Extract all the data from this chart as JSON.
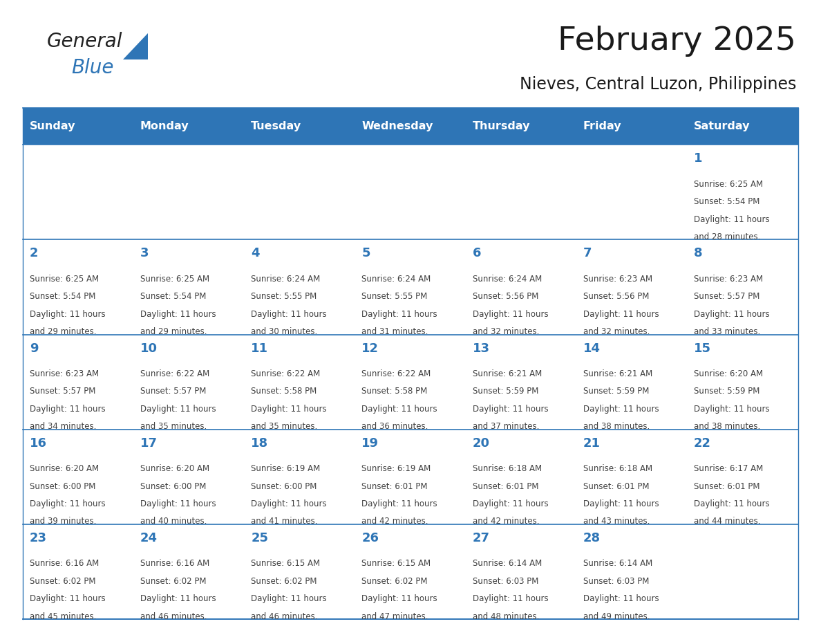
{
  "title": "February 2025",
  "subtitle": "Nieves, Central Luzon, Philippines",
  "header_bg": "#2E75B6",
  "header_text_color": "#FFFFFF",
  "days_of_week": [
    "Sunday",
    "Monday",
    "Tuesday",
    "Wednesday",
    "Thursday",
    "Friday",
    "Saturday"
  ],
  "row_bg_even": "#FFFFFF",
  "row_bg_odd": "#F2F2F2",
  "cell_border_color": "#2E75B6",
  "day_number_color": "#2E75B6",
  "info_text_color": "#404040",
  "calendar": [
    [
      null,
      null,
      null,
      null,
      null,
      null,
      1
    ],
    [
      2,
      3,
      4,
      5,
      6,
      7,
      8
    ],
    [
      9,
      10,
      11,
      12,
      13,
      14,
      15
    ],
    [
      16,
      17,
      18,
      19,
      20,
      21,
      22
    ],
    [
      23,
      24,
      25,
      26,
      27,
      28,
      null
    ]
  ],
  "sunrise": {
    "1": "6:25 AM",
    "2": "6:25 AM",
    "3": "6:25 AM",
    "4": "6:24 AM",
    "5": "6:24 AM",
    "6": "6:24 AM",
    "7": "6:23 AM",
    "8": "6:23 AM",
    "9": "6:23 AM",
    "10": "6:22 AM",
    "11": "6:22 AM",
    "12": "6:22 AM",
    "13": "6:21 AM",
    "14": "6:21 AM",
    "15": "6:20 AM",
    "16": "6:20 AM",
    "17": "6:20 AM",
    "18": "6:19 AM",
    "19": "6:19 AM",
    "20": "6:18 AM",
    "21": "6:18 AM",
    "22": "6:17 AM",
    "23": "6:16 AM",
    "24": "6:16 AM",
    "25": "6:15 AM",
    "26": "6:15 AM",
    "27": "6:14 AM",
    "28": "6:14 AM"
  },
  "sunset": {
    "1": "5:54 PM",
    "2": "5:54 PM",
    "3": "5:54 PM",
    "4": "5:55 PM",
    "5": "5:55 PM",
    "6": "5:56 PM",
    "7": "5:56 PM",
    "8": "5:57 PM",
    "9": "5:57 PM",
    "10": "5:57 PM",
    "11": "5:58 PM",
    "12": "5:58 PM",
    "13": "5:59 PM",
    "14": "5:59 PM",
    "15": "5:59 PM",
    "16": "6:00 PM",
    "17": "6:00 PM",
    "18": "6:00 PM",
    "19": "6:01 PM",
    "20": "6:01 PM",
    "21": "6:01 PM",
    "22": "6:01 PM",
    "23": "6:02 PM",
    "24": "6:02 PM",
    "25": "6:02 PM",
    "26": "6:02 PM",
    "27": "6:03 PM",
    "28": "6:03 PM"
  },
  "daylight_hours": {
    "1": 11,
    "2": 11,
    "3": 11,
    "4": 11,
    "5": 11,
    "6": 11,
    "7": 11,
    "8": 11,
    "9": 11,
    "10": 11,
    "11": 11,
    "12": 11,
    "13": 11,
    "14": 11,
    "15": 11,
    "16": 11,
    "17": 11,
    "18": 11,
    "19": 11,
    "20": 11,
    "21": 11,
    "22": 11,
    "23": 11,
    "24": 11,
    "25": 11,
    "26": 11,
    "27": 11,
    "28": 11
  },
  "daylight_minutes": {
    "1": 28,
    "2": 29,
    "3": 29,
    "4": 30,
    "5": 31,
    "6": 32,
    "7": 32,
    "8": 33,
    "9": 34,
    "10": 35,
    "11": 35,
    "12": 36,
    "13": 37,
    "14": 38,
    "15": 38,
    "16": 39,
    "17": 40,
    "18": 41,
    "19": 42,
    "20": 42,
    "21": 43,
    "22": 44,
    "23": 45,
    "24": 46,
    "25": 46,
    "26": 47,
    "27": 48,
    "28": 49
  }
}
